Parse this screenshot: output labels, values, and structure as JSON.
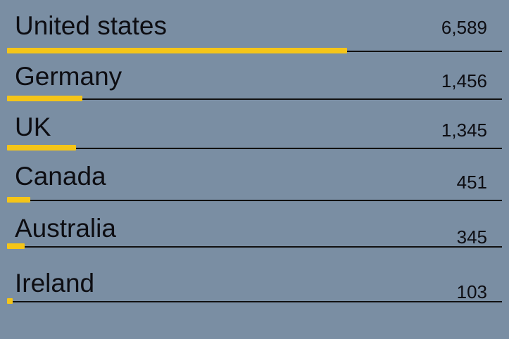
{
  "colors": {
    "background": "#7a8ea3",
    "bar": "#f5c518",
    "text": "#0d0d12",
    "rule": "#111111"
  },
  "chart_data": {
    "type": "bar",
    "orientation": "horizontal",
    "categories": [
      "United states",
      "Germany",
      "UK",
      "Canada",
      "Australia",
      "Ireland"
    ],
    "values": [
      6589,
      1456,
      1345,
      451,
      345,
      103
    ],
    "value_labels": [
      "6,589",
      "1,456",
      "1,345",
      "451",
      "345",
      "103"
    ],
    "title": "",
    "xlabel": "",
    "ylabel": "",
    "xlim": [
      0,
      9600
    ],
    "grid": false,
    "legend": "none"
  }
}
